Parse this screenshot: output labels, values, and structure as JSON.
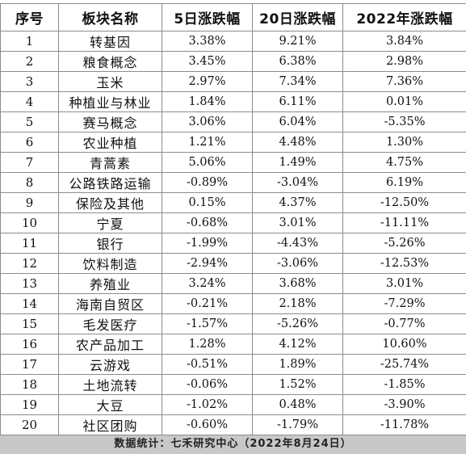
{
  "table": {
    "headers": {
      "index": "序号",
      "name": "板块名称",
      "change_5d": "5日涨跌幅",
      "change_20d": "20日涨跌幅",
      "change_2022": "2022年涨跌幅"
    },
    "rows": [
      {
        "index": "1",
        "name": "转基因",
        "change_5d": "3.38%",
        "change_20d": "9.21%",
        "change_2022": "3.84%"
      },
      {
        "index": "2",
        "name": "粮食概念",
        "change_5d": "3.45%",
        "change_20d": "6.38%",
        "change_2022": "2.98%"
      },
      {
        "index": "3",
        "name": "玉米",
        "change_5d": "2.97%",
        "change_20d": "7.34%",
        "change_2022": "7.36%"
      },
      {
        "index": "4",
        "name": "种植业与林业",
        "change_5d": "1.84%",
        "change_20d": "6.11%",
        "change_2022": "0.01%"
      },
      {
        "index": "5",
        "name": "赛马概念",
        "change_5d": "3.06%",
        "change_20d": "6.04%",
        "change_2022": "-5.35%"
      },
      {
        "index": "6",
        "name": "农业种植",
        "change_5d": "1.21%",
        "change_20d": "4.48%",
        "change_2022": "1.30%"
      },
      {
        "index": "7",
        "name": "青蒿素",
        "change_5d": "5.06%",
        "change_20d": "1.49%",
        "change_2022": "4.75%"
      },
      {
        "index": "8",
        "name": "公路铁路运输",
        "change_5d": "-0.89%",
        "change_20d": "-3.04%",
        "change_2022": "6.19%"
      },
      {
        "index": "9",
        "name": "保险及其他",
        "change_5d": "0.15%",
        "change_20d": "4.37%",
        "change_2022": "-12.50%"
      },
      {
        "index": "10",
        "name": "宁夏",
        "change_5d": "-0.68%",
        "change_20d": "3.01%",
        "change_2022": "-11.11%"
      },
      {
        "index": "11",
        "name": "银行",
        "change_5d": "-1.99%",
        "change_20d": "-4.43%",
        "change_2022": "-5.26%"
      },
      {
        "index": "12",
        "name": "饮料制造",
        "change_5d": "-2.94%",
        "change_20d": "-3.06%",
        "change_2022": "-12.53%"
      },
      {
        "index": "13",
        "name": "养殖业",
        "change_5d": "3.24%",
        "change_20d": "3.68%",
        "change_2022": "3.01%"
      },
      {
        "index": "14",
        "name": "海南自贸区",
        "change_5d": "-0.21%",
        "change_20d": "2.18%",
        "change_2022": "-7.29%"
      },
      {
        "index": "15",
        "name": "毛发医疗",
        "change_5d": "-1.57%",
        "change_20d": "-5.26%",
        "change_2022": "-0.77%"
      },
      {
        "index": "16",
        "name": "农产品加工",
        "change_5d": "1.28%",
        "change_20d": "4.12%",
        "change_2022": "10.60%"
      },
      {
        "index": "17",
        "name": "云游戏",
        "change_5d": "-0.51%",
        "change_20d": "1.89%",
        "change_2022": "-25.74%"
      },
      {
        "index": "18",
        "name": "土地流转",
        "change_5d": "-0.06%",
        "change_20d": "1.52%",
        "change_2022": "-1.85%"
      },
      {
        "index": "19",
        "name": "大豆",
        "change_5d": "-1.02%",
        "change_20d": "0.48%",
        "change_2022": "-3.90%"
      },
      {
        "index": "20",
        "name": "社区团购",
        "change_5d": "-0.60%",
        "change_20d": "-1.79%",
        "change_2022": "-11.78%"
      }
    ]
  },
  "footer": {
    "source": "数据统计：七禾研究中心（2022年8月24日）"
  }
}
